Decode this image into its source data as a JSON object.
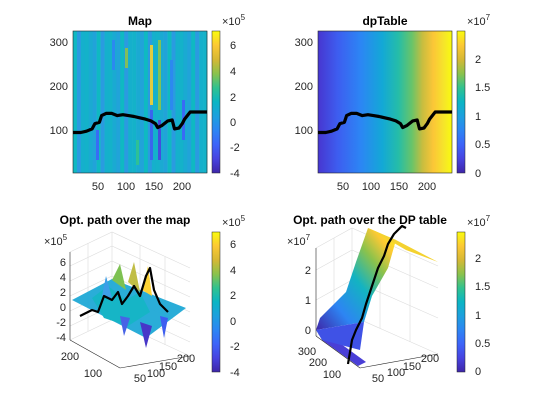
{
  "chart_data": [
    {
      "type": "heatmap",
      "title": "Map",
      "xticks": [
        "50",
        "100",
        "150",
        "200"
      ],
      "yticks": [
        "100",
        "200",
        "300"
      ],
      "xlim": [
        1,
        240
      ],
      "ylim": [
        1,
        320
      ],
      "colorbar": {
        "ticks": [
          "6",
          "4",
          "2",
          "0",
          "-2",
          "-4"
        ],
        "multiplier": "×10",
        "exponent": "5",
        "range": [
          -400000,
          700000
        ]
      },
      "path": {
        "x": [
          1,
          15,
          25,
          35,
          40,
          48,
          52,
          60,
          70,
          80,
          90,
          100,
          110,
          120,
          130,
          140,
          148,
          152,
          160,
          170,
          178,
          182,
          190,
          196,
          200,
          210,
          220,
          230,
          240
        ],
        "y": [
          92,
          92,
          95,
          100,
          112,
          115,
          130,
          135,
          135,
          130,
          132,
          130,
          128,
          125,
          122,
          118,
          112,
          103,
          108,
          118,
          120,
          100,
          102,
          112,
          122,
          138,
          138,
          138,
          138
        ]
      }
    },
    {
      "type": "heatmap",
      "title": "dpTable",
      "xticks": [
        "50",
        "100",
        "150",
        "200"
      ],
      "yticks": [
        "100",
        "200",
        "300"
      ],
      "xlim": [
        1,
        240
      ],
      "ylim": [
        1,
        320
      ],
      "colorbar": {
        "ticks": [
          "2",
          "1.5",
          "1",
          "0.5",
          "0"
        ],
        "multiplier": "×10",
        "exponent": "7",
        "range": [
          0,
          24000000
        ]
      },
      "path": {
        "x": [
          1,
          15,
          25,
          35,
          40,
          48,
          52,
          60,
          70,
          80,
          90,
          100,
          110,
          120,
          130,
          140,
          148,
          152,
          160,
          170,
          178,
          182,
          190,
          196,
          200,
          210,
          220,
          230,
          240
        ],
        "y": [
          92,
          92,
          95,
          100,
          112,
          115,
          130,
          135,
          135,
          130,
          132,
          130,
          128,
          125,
          122,
          118,
          112,
          103,
          108,
          118,
          120,
          100,
          102,
          112,
          122,
          138,
          138,
          138,
          138
        ]
      }
    },
    {
      "type": "area",
      "title": "Opt. path over the map",
      "zticks": [
        "6",
        "4",
        "2",
        "0",
        "-2",
        "-4"
      ],
      "zmultiplier": "×10",
      "zexponent": "5",
      "yticks": [
        "200",
        "100"
      ],
      "xticks": [
        "50",
        "100",
        "150",
        "200"
      ],
      "colorbar": {
        "ticks": [
          "6",
          "4",
          "2",
          "0",
          "-2",
          "-4"
        ],
        "multiplier": "×10",
        "exponent": "5",
        "range": [
          -400000,
          700000
        ]
      }
    },
    {
      "type": "area",
      "title": "Opt. path over the DP table",
      "zticks": [
        "2",
        "1",
        "0"
      ],
      "zmultiplier": "×10",
      "zexponent": "7",
      "yticks": [
        "300",
        "200",
        "100"
      ],
      "xticks": [
        "50",
        "100",
        "150",
        "200"
      ],
      "colorbar": {
        "ticks": [
          "2",
          "1.5",
          "1",
          "0.5",
          "0"
        ],
        "multiplier": "×10",
        "exponent": "7",
        "range": [
          0,
          24000000
        ]
      }
    }
  ]
}
